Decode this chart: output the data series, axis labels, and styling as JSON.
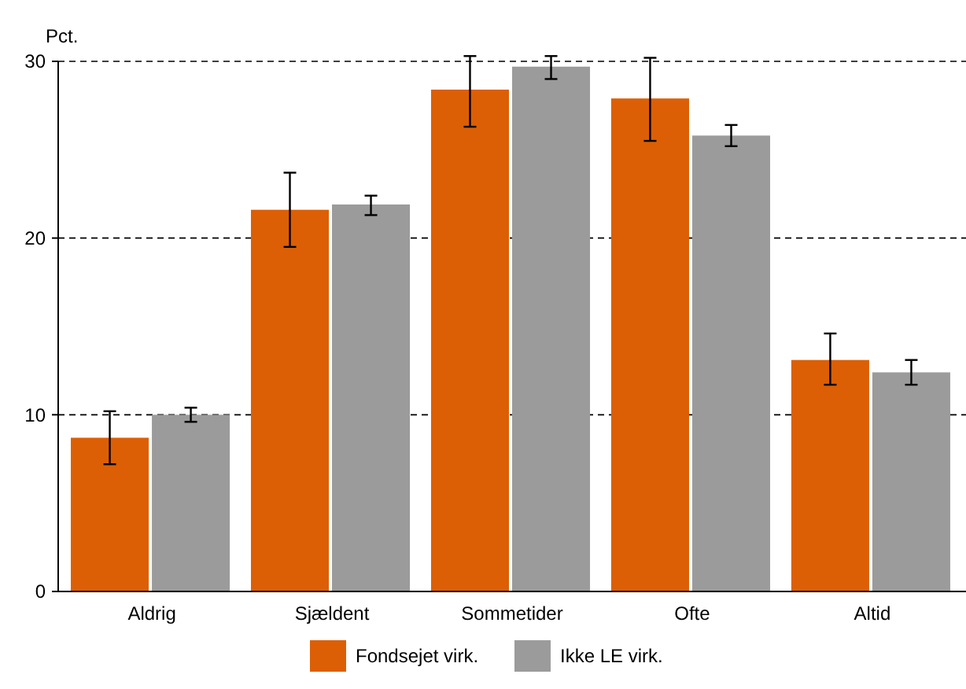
{
  "chart_data": {
    "type": "bar",
    "ylabel": "Pct.",
    "categories": [
      "Aldrig",
      "Sjældent",
      "Sommetider",
      "Ofte",
      "Altid"
    ],
    "series": [
      {
        "name": "Fondsejet virk.",
        "color": "#dc5f05",
        "values": [
          8.7,
          21.6,
          28.4,
          27.9,
          13.1
        ],
        "errors": [
          [
            7.2,
            10.2
          ],
          [
            19.5,
            23.7
          ],
          [
            26.3,
            30.3
          ],
          [
            25.5,
            30.2
          ],
          [
            11.7,
            14.6
          ]
        ]
      },
      {
        "name": "Ikke LE virk.",
        "color": "#9b9b9b",
        "values": [
          10.0,
          21.9,
          29.7,
          25.8,
          12.4
        ],
        "errors": [
          [
            9.6,
            10.4
          ],
          [
            21.3,
            22.4
          ],
          [
            29.0,
            30.3
          ],
          [
            25.2,
            26.4
          ],
          [
            11.7,
            13.1
          ]
        ]
      }
    ],
    "ylim": [
      0,
      30
    ],
    "yticks": [
      0,
      10,
      20,
      30
    ],
    "grid": "y",
    "legend": "bottom"
  }
}
